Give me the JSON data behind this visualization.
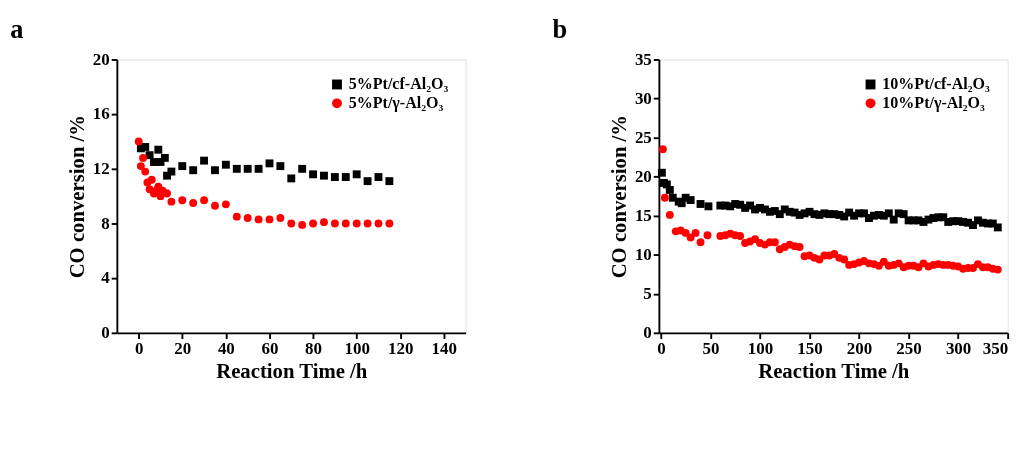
{
  "chart_data": [
    {
      "type": "scatter",
      "title": "a",
      "xlabel": "Reaction Time /h",
      "ylabel": "CO conversion /%",
      "xlim": [
        -10,
        150
      ],
      "xticks": [
        0,
        20,
        40,
        60,
        80,
        100,
        120,
        140
      ],
      "ylim": [
        0,
        20
      ],
      "yticks": [
        0,
        4,
        8,
        12,
        16,
        20
      ],
      "grid": false,
      "legend": "top right",
      "series": [
        {
          "name": "5%Pt/cf-Al₂O₃",
          "color": "#000000",
          "marker": "square",
          "x": [
            1,
            3,
            5,
            7,
            9,
            10,
            12,
            13,
            15,
            20,
            25,
            30,
            35,
            40,
            45,
            50,
            55,
            60,
            65,
            70,
            75,
            80,
            85,
            90,
            95,
            100,
            105,
            110,
            115
          ],
          "values": [
            13.5,
            13.6,
            13.0,
            12.5,
            13.4,
            12.5,
            12.8,
            11.5,
            11.8,
            12.2,
            11.9,
            12.6,
            11.9,
            12.3,
            12.0,
            12.0,
            12.0,
            12.4,
            12.2,
            11.3,
            12.0,
            11.6,
            11.5,
            11.4,
            11.4,
            11.6,
            11.1,
            11.4,
            11.1
          ]
        },
        {
          "name": "5%Pt/γ-Al₂O₃",
          "color": "#ff0000",
          "marker": "circle",
          "x": [
            0,
            1,
            2,
            3,
            4,
            5,
            6,
            7,
            8,
            9,
            10,
            11,
            12,
            13,
            15,
            20,
            25,
            30,
            35,
            40,
            45,
            50,
            55,
            60,
            65,
            70,
            75,
            80,
            85,
            90,
            95,
            100,
            105,
            110,
            115
          ],
          "values": [
            14.0,
            12.2,
            12.8,
            11.8,
            11.0,
            10.5,
            11.2,
            10.2,
            10.4,
            10.7,
            10.0,
            10.4,
            null,
            10.2,
            9.6,
            9.7,
            9.5,
            9.7,
            9.3,
            9.4,
            8.5,
            8.4,
            8.3,
            8.3,
            8.4,
            8.0,
            7.9,
            8.0,
            8.1,
            8.0,
            8.0,
            8.0,
            8.0,
            8.0,
            8.0
          ]
        }
      ]
    },
    {
      "type": "scatter",
      "title": "b",
      "xlabel": "Reaction Time /h",
      "ylabel": "CO conversion /%",
      "xlim": [
        -2,
        350
      ],
      "xticks": [
        0,
        50,
        100,
        150,
        200,
        250,
        300,
        350
      ],
      "ylim": [
        0,
        35
      ],
      "yticks": [
        0,
        5,
        10,
        15,
        20,
        25,
        30,
        35
      ],
      "grid": false,
      "legend": "top right",
      "series": [
        {
          "name": "10%Pt/cf-Al₂O₃",
          "color": "#000000",
          "marker": "square",
          "x": [
            1,
            3,
            6,
            9,
            12,
            18,
            21,
            25,
            30,
            40,
            48,
            60,
            65,
            70,
            75,
            80,
            85,
            90,
            95,
            100,
            105,
            110,
            115,
            120,
            125,
            130,
            135,
            140,
            145,
            150,
            155,
            160,
            165,
            170,
            175,
            180,
            185,
            190,
            195,
            200,
            205,
            210,
            215,
            220,
            225,
            230,
            235,
            240,
            245,
            250,
            255,
            260,
            265,
            270,
            275,
            280,
            285,
            290,
            295,
            300,
            305,
            310,
            315,
            320,
            325,
            330,
            335,
            340
          ],
          "values": [
            20.5,
            19.2,
            19.0,
            18.3,
            17.3,
            16.8,
            16.6,
            17.3,
            17.0,
            16.5,
            16.2,
            16.3,
            16.3,
            16.2,
            16.5,
            16.4,
            16.0,
            16.3,
            15.8,
            16.0,
            15.8,
            15.5,
            15.6,
            15.2,
            15.8,
            15.5,
            15.4,
            15.1,
            15.3,
            15.5,
            15.2,
            15.1,
            15.3,
            15.2,
            15.2,
            15.1,
            14.9,
            15.4,
            15.0,
            15.3,
            15.3,
            14.7,
            15.0,
            15.1,
            15.0,
            15.3,
            14.5,
            15.3,
            15.2,
            14.4,
            14.4,
            14.4,
            14.2,
            14.5,
            14.7,
            14.8,
            14.8,
            14.2,
            14.3,
            14.3,
            14.2,
            14.1,
            13.8,
            14.4,
            14.1,
            14.0,
            14.0,
            13.5
          ]
        },
        {
          "name": "10%Pt/γ-Al₂O₃",
          "color": "#ff0000",
          "marker": "circle",
          "x": [
            2,
            4,
            9,
            15,
            20,
            25,
            30,
            35,
            40,
            47,
            60,
            65,
            70,
            75,
            80,
            85,
            90,
            95,
            100,
            105,
            110,
            115,
            120,
            125,
            130,
            135,
            140,
            145,
            150,
            155,
            160,
            165,
            170,
            175,
            180,
            185,
            190,
            195,
            200,
            205,
            210,
            215,
            220,
            225,
            230,
            235,
            240,
            245,
            250,
            255,
            260,
            265,
            270,
            275,
            280,
            285,
            290,
            295,
            300,
            305,
            310,
            315,
            320,
            325,
            330,
            335,
            340
          ],
          "values": [
            23.5,
            17.3,
            15.1,
            13.0,
            13.1,
            12.8,
            12.2,
            12.8,
            11.6,
            12.5,
            12.4,
            12.5,
            12.7,
            12.5,
            12.4,
            11.5,
            11.7,
            12.0,
            11.5,
            11.3,
            11.6,
            11.6,
            10.7,
            11.0,
            11.3,
            11.1,
            11.0,
            9.8,
            9.9,
            9.6,
            9.4,
            9.9,
            9.9,
            10.1,
            9.6,
            9.4,
            8.7,
            8.8,
            9.0,
            9.2,
            8.9,
            8.8,
            8.6,
            9.1,
            8.6,
            8.7,
            8.9,
            8.4,
            8.6,
            8.6,
            8.4,
            8.9,
            8.5,
            8.7,
            8.8,
            8.7,
            8.7,
            8.6,
            8.5,
            8.2,
            8.3,
            8.3,
            8.8,
            8.4,
            8.4,
            8.2,
            8.1
          ]
        }
      ]
    }
  ]
}
